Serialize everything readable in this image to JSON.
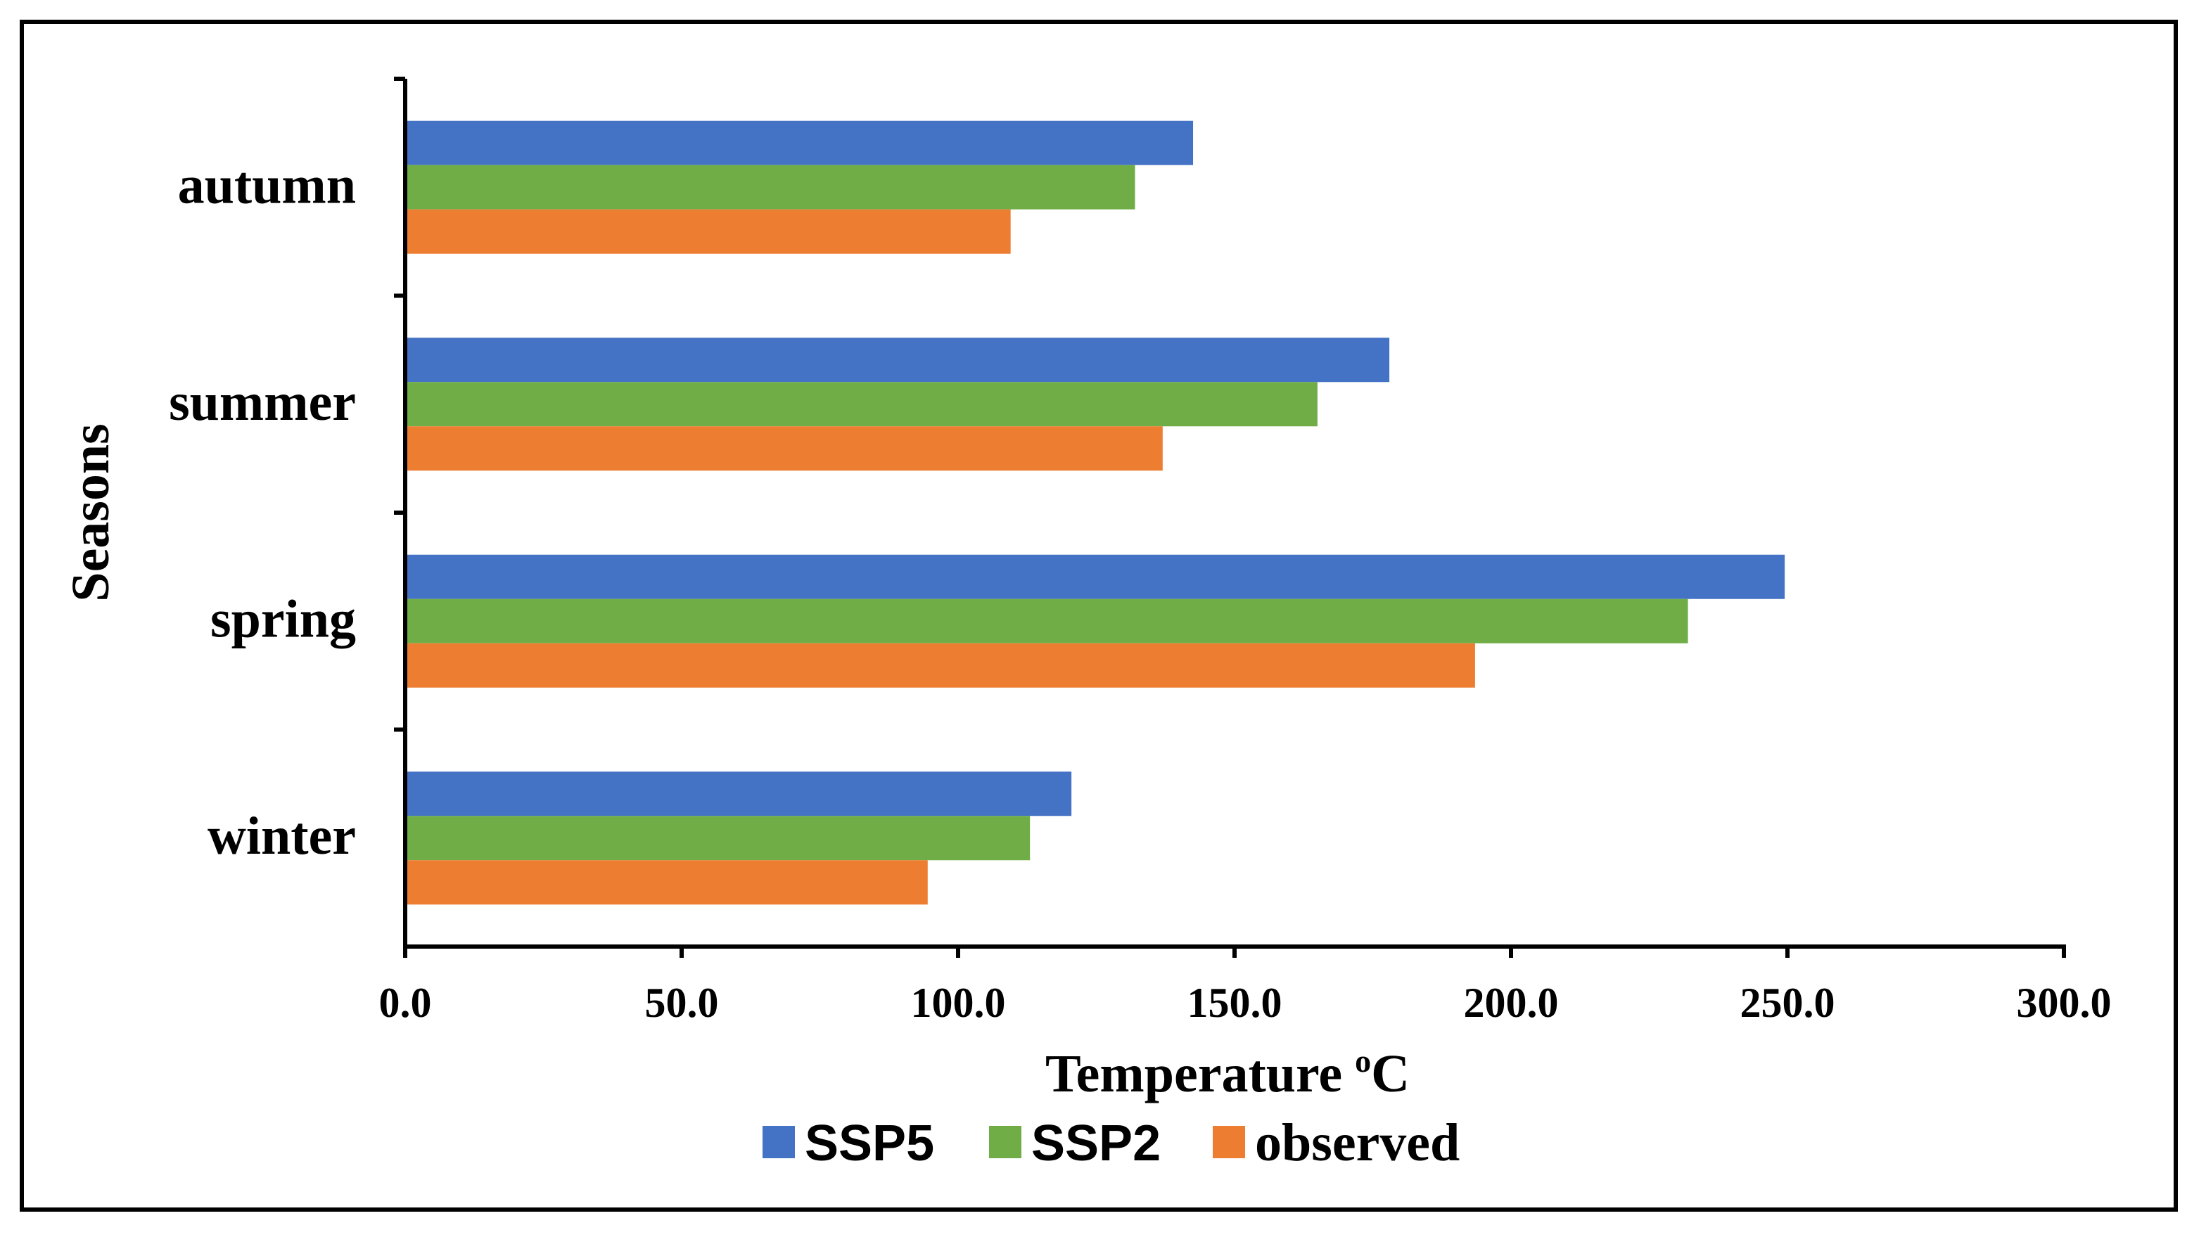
{
  "chart_data": {
    "type": "bar",
    "orientation": "horizontal",
    "title": "",
    "xlabel": "Temperature",
    "xlabel_superscript": "o",
    "xlabel_unit": "C",
    "ylabel": "Seasons",
    "categories": [
      "winter",
      "spring",
      "summer",
      "autumn"
    ],
    "series": [
      {
        "name": "observed",
        "color": "#ED7D31",
        "values": [
          94.5,
          193.5,
          137.0,
          109.5
        ]
      },
      {
        "name": "SSP2",
        "color": "#70AD47",
        "values": [
          113.0,
          232.0,
          165.0,
          132.0
        ]
      },
      {
        "name": "SSP5",
        "color": "#4472C4",
        "values": [
          120.5,
          249.5,
          178.0,
          142.5
        ]
      }
    ],
    "legend_order": [
      "SSP5",
      "SSP2",
      "observed"
    ],
    "legend_position": "bottom",
    "xlim": [
      0,
      300
    ],
    "xticks": [
      0,
      50,
      100,
      150,
      200,
      250,
      300
    ],
    "xtick_labels": [
      "0.0",
      "50.0",
      "100.0",
      "150.0",
      "200.0",
      "250.0",
      "300.0"
    ],
    "grid": false
  }
}
